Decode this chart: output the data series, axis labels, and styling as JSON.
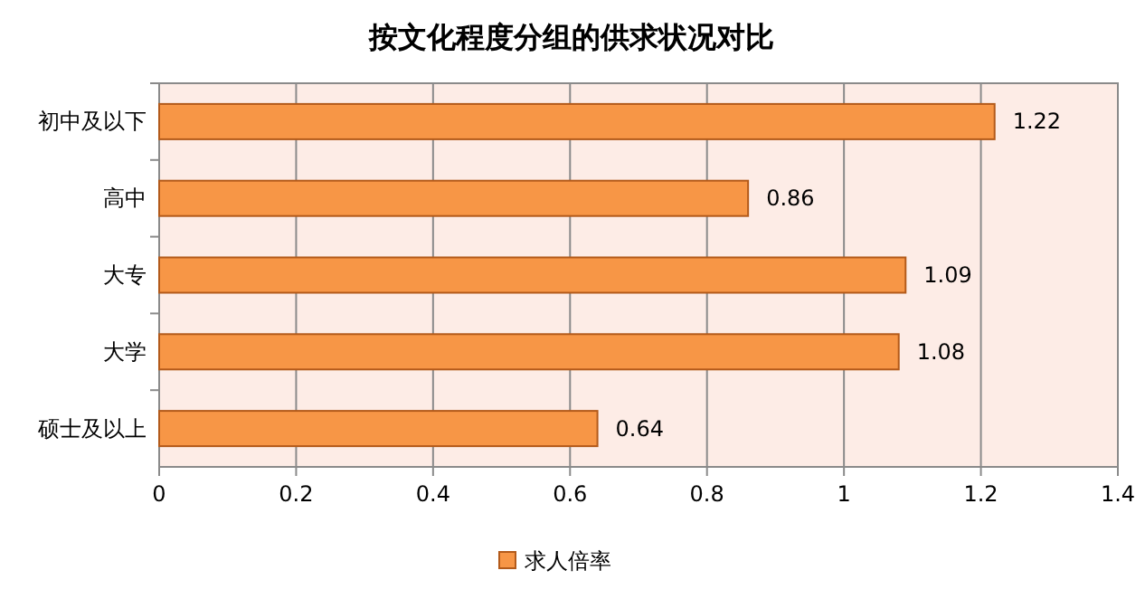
{
  "chart_data": {
    "type": "bar",
    "orientation": "horizontal",
    "title": "按文化程度分组的供求状况对比",
    "categories": [
      "初中及以下",
      "高中",
      "大专",
      "大学",
      "硕士及以上"
    ],
    "series": [
      {
        "name": "求人倍率",
        "color": "#f79646",
        "values": [
          1.22,
          0.86,
          1.09,
          1.08,
          0.64
        ]
      }
    ],
    "xlim": [
      0,
      1.4
    ],
    "xticks": [
      0,
      0.2,
      0.4,
      0.6,
      0.8,
      1,
      1.2,
      1.4
    ],
    "grid": "x",
    "legend": "bottom",
    "data_labels": true
  }
}
